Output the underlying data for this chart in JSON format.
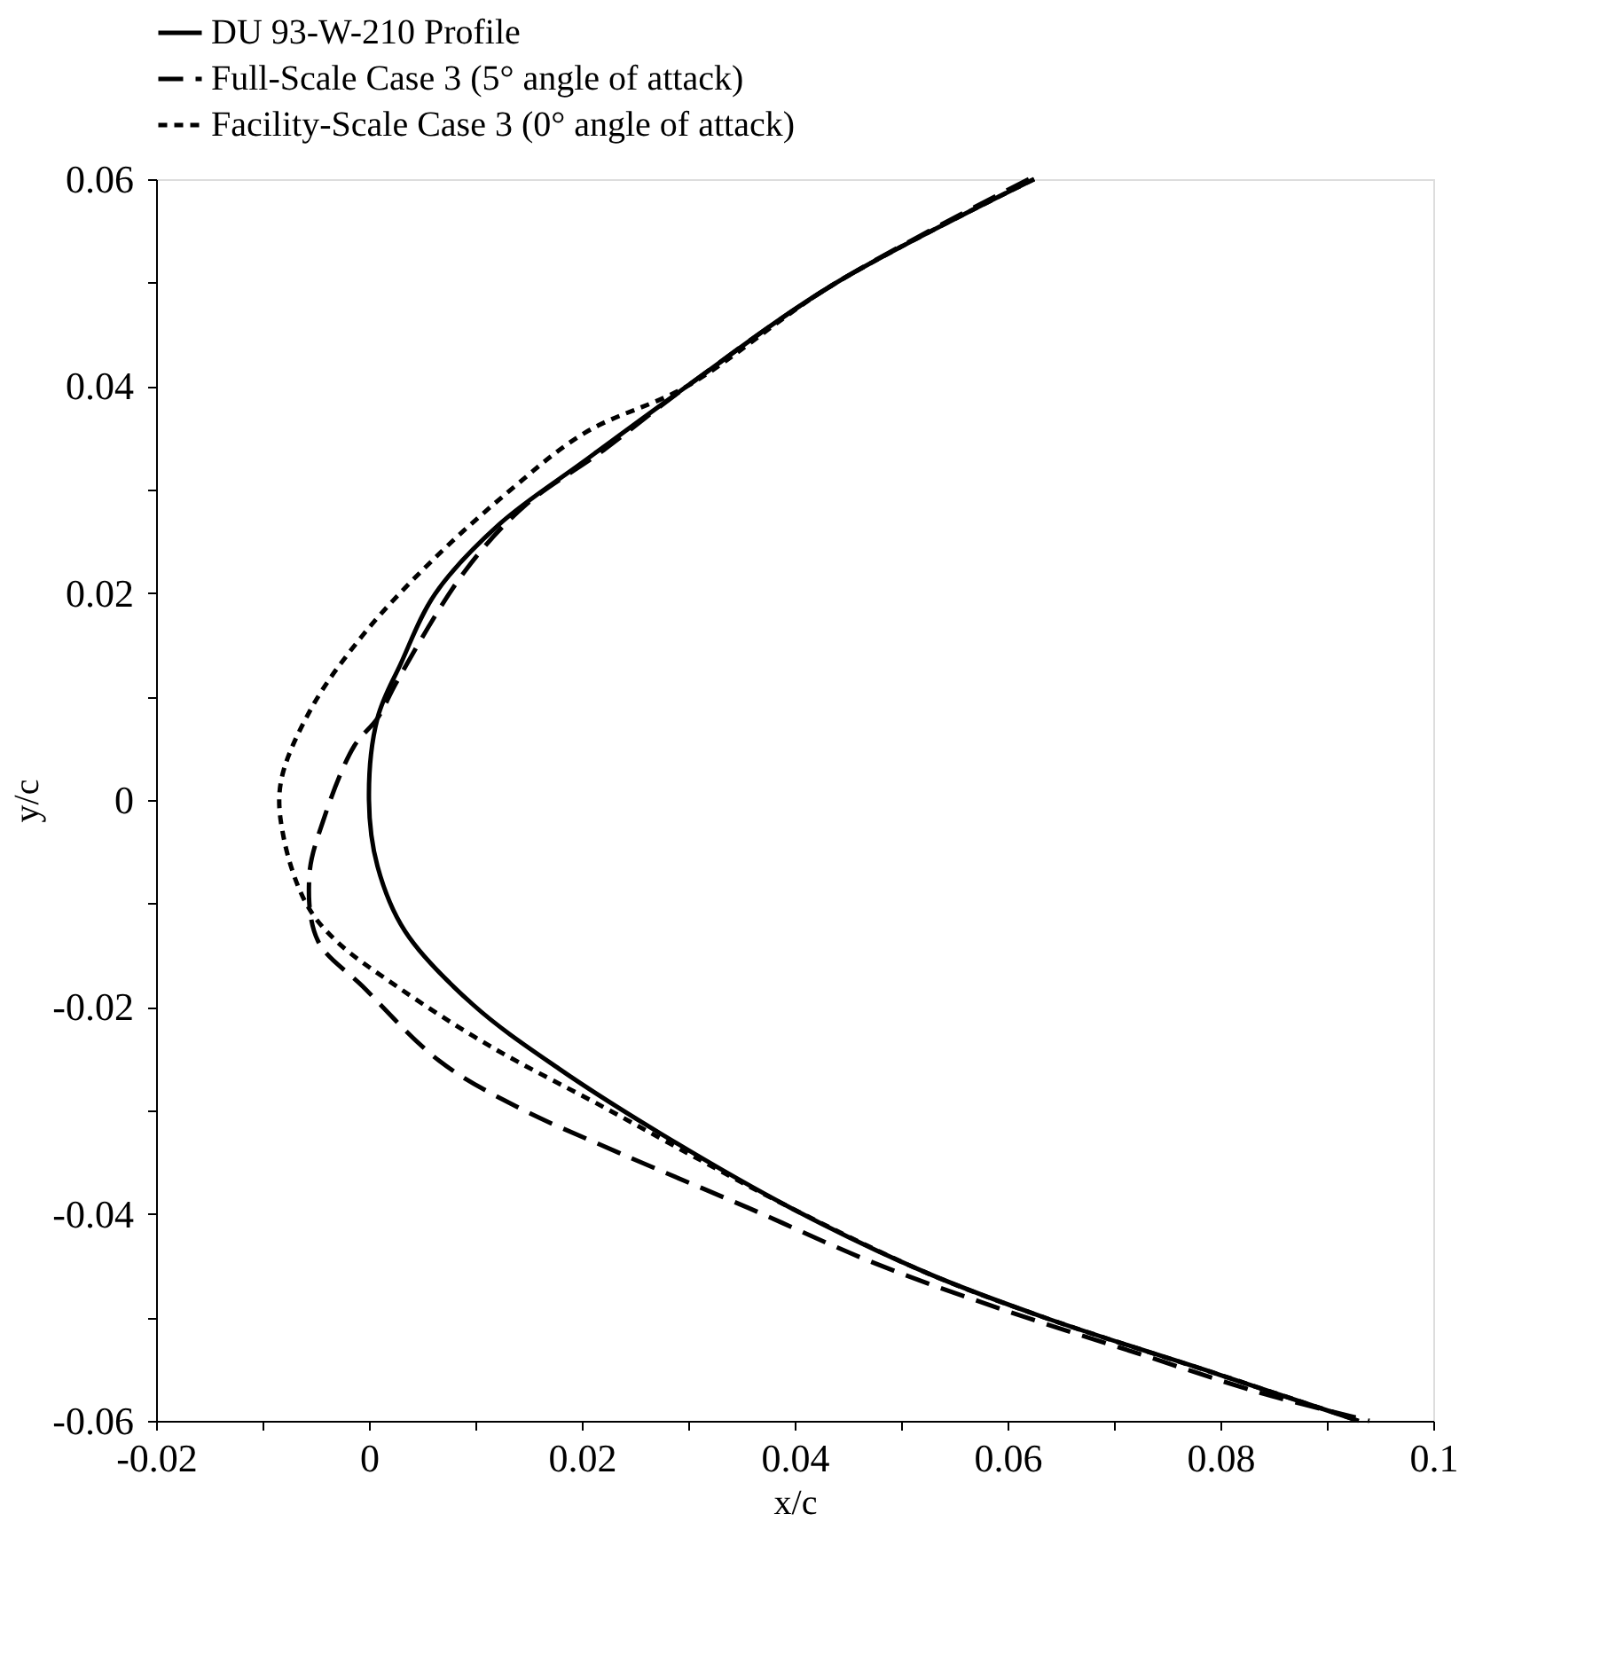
{
  "chart_data": {
    "type": "line",
    "xlabel": "x/c",
    "ylabel": "y/c",
    "xlim": [
      -0.02,
      0.1
    ],
    "ylim": [
      -0.06,
      0.06
    ],
    "xticks": [
      -0.02,
      {
        "value": -0.01,
        "label": null
      },
      0,
      {
        "value": 0.01,
        "label": null
      },
      0.02,
      {
        "value": 0.03,
        "label": null
      },
      0.04,
      {
        "value": 0.05,
        "label": null
      },
      0.06,
      {
        "value": 0.07,
        "label": null
      },
      0.08,
      {
        "value": 0.09,
        "label": null
      },
      0.1
    ],
    "yticks": [
      -0.06,
      {
        "value": -0.05,
        "label": null
      },
      -0.04,
      {
        "value": -0.03,
        "label": null
      },
      -0.02,
      {
        "value": -0.01,
        "label": null
      },
      0,
      {
        "value": 0.01,
        "label": null
      },
      0.02,
      {
        "value": 0.03,
        "label": null
      },
      0.04,
      {
        "value": 0.05,
        "label": null
      },
      0.06
    ],
    "grid": false,
    "legend": "top",
    "marker": "none",
    "series": [
      {
        "name": "DU 93-W-210 Profile",
        "color": "#000000",
        "line_style": "solid",
        "x": [
          0.0625,
          0.0436,
          0.0299,
          0.0203,
          0.0122,
          0.0062,
          0.003,
          0.0008,
          0,
          0.0008,
          0.0034,
          0.0098,
          0.0179,
          0.0275,
          0.0396,
          0.0524,
          0.0637,
          0.0798,
          0.093
        ],
        "values": [
          0.06,
          0.0498,
          0.04,
          0.0328,
          0.0266,
          0.0199,
          0.0132,
          0.0079,
          0,
          -0.0064,
          -0.0127,
          -0.0198,
          -0.026,
          -0.0323,
          -0.0394,
          -0.0457,
          -0.0501,
          -0.0555,
          -0.06
        ]
      },
      {
        "name": "Full-Scale Case 3 (5° angle of attack)",
        "color": "#000000",
        "line_style": "dashed",
        "x": [
          0.062,
          0.0436,
          0.0299,
          0.0219,
          0.0146,
          0.009,
          0.0026,
          0.0008,
          -0.0014,
          -0.0043,
          -0.0056,
          -0.0048,
          -0.0006,
          0.0066,
          0.0138,
          0.0235,
          0.0356,
          0.0476,
          0.0597,
          0.0717,
          0.0838,
          0.094
        ],
        "values": [
          0.06,
          0.0498,
          0.04,
          0.0337,
          0.0284,
          0.0221,
          0.0114,
          0.0079,
          0.0052,
          -0.002,
          -0.0073,
          -0.0136,
          -0.018,
          -0.0252,
          -0.0296,
          -0.0341,
          -0.0394,
          -0.0448,
          -0.0493,
          -0.0533,
          -0.0573,
          -0.06
        ]
      },
      {
        "name": "Facility-Scale Case 3 (0° angle of attack)",
        "color": "#000000",
        "line_style": "dotted",
        "x": [
          0.0625,
          0.0436,
          0.0299,
          0.0203,
          0.013,
          0.0058,
          -0.0006,
          -0.0055,
          -0.0083,
          -0.008,
          -0.0059,
          -0.0031,
          0.0026,
          0.0114,
          0.0219,
          0.0315,
          0.0396,
          0.0524,
          0.0637,
          0.0798,
          0.093
        ],
        "values": [
          0.06,
          0.0498,
          0.04,
          0.0355,
          0.0297,
          0.023,
          0.0159,
          0.0087,
          0.0016,
          -0.0037,
          -0.01,
          -0.0136,
          -0.018,
          -0.0238,
          -0.0296,
          -0.035,
          -0.0394,
          -0.0457,
          -0.0501,
          -0.0555,
          -0.06
        ]
      }
    ]
  }
}
